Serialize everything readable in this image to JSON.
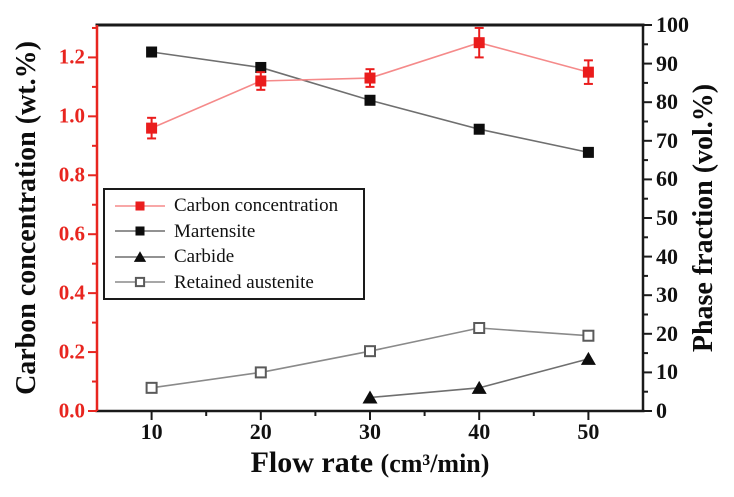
{
  "chart_data": {
    "type": "line",
    "title": "",
    "x": {
      "label_main": "Flow rate",
      "label_unit": "(cm³/min)",
      "range": [
        5,
        55
      ],
      "ticks": [
        10,
        20,
        30,
        40,
        50
      ],
      "minor_ticks": [
        15,
        25,
        35,
        45
      ]
    },
    "y_left": {
      "label": "Carbon concentration (wt.%)",
      "range": [
        0,
        1.31
      ],
      "tick_values": [
        0,
        0.2,
        0.4,
        0.6,
        0.8,
        1.0,
        1.2
      ],
      "tick_labels": [
        "0.0",
        "0.2",
        "0.4",
        "0.6",
        "0.8",
        "1.0",
        "1.2"
      ],
      "minor_ticks": [
        0.1,
        0.3,
        0.5,
        0.7,
        0.9,
        1.1,
        1.3
      ],
      "color": "#e8251f"
    },
    "y_right": {
      "label": "Phase fraction (vol.%)",
      "range": [
        0,
        100
      ],
      "ticks": [
        0,
        10,
        20,
        30,
        40,
        50,
        60,
        70,
        80,
        90,
        100
      ],
      "minor_ticks": [
        5,
        15,
        25,
        35,
        45,
        55,
        65,
        75,
        85,
        95
      ],
      "color": "#111111"
    },
    "series": [
      {
        "name": "Carbon concentration",
        "slug": "carbon-concentration",
        "axis": "left",
        "marker": "filled-square",
        "marker_color": "#ea1c1c",
        "line_color": "#f58a8a",
        "x": [
          10,
          20,
          30,
          40,
          50
        ],
        "y": [
          0.96,
          1.12,
          1.13,
          1.25,
          1.15
        ],
        "y_err": [
          0.035,
          0.03,
          0.03,
          0.05,
          0.04
        ]
      },
      {
        "name": "Martensite",
        "slug": "martensite",
        "axis": "right",
        "marker": "filled-square",
        "marker_color": "#0d0d0d",
        "line_color": "#6f6f6f",
        "x": [
          10,
          20,
          30,
          40,
          50
        ],
        "y": [
          93,
          89,
          80.5,
          73,
          67
        ]
      },
      {
        "name": "Carbide",
        "slug": "carbide",
        "axis": "right",
        "marker": "filled-triangle",
        "marker_color": "#0d0d0d",
        "line_color": "#6f6f6f",
        "x": [
          30,
          40,
          50
        ],
        "y": [
          3.5,
          6,
          13.5
        ]
      },
      {
        "name": "Retained austenite",
        "slug": "retained-austenite",
        "axis": "right",
        "marker": "open-square",
        "marker_color": "#5a5a5a",
        "line_color": "#8a8a8a",
        "x": [
          10,
          20,
          30,
          40,
          50
        ],
        "y": [
          6,
          10,
          15.5,
          21.5,
          19.5
        ]
      }
    ],
    "legend": {
      "position": "middle-left",
      "items": [
        "Carbon concentration",
        "Martensite",
        "Carbide",
        "Retained austenite"
      ]
    }
  }
}
